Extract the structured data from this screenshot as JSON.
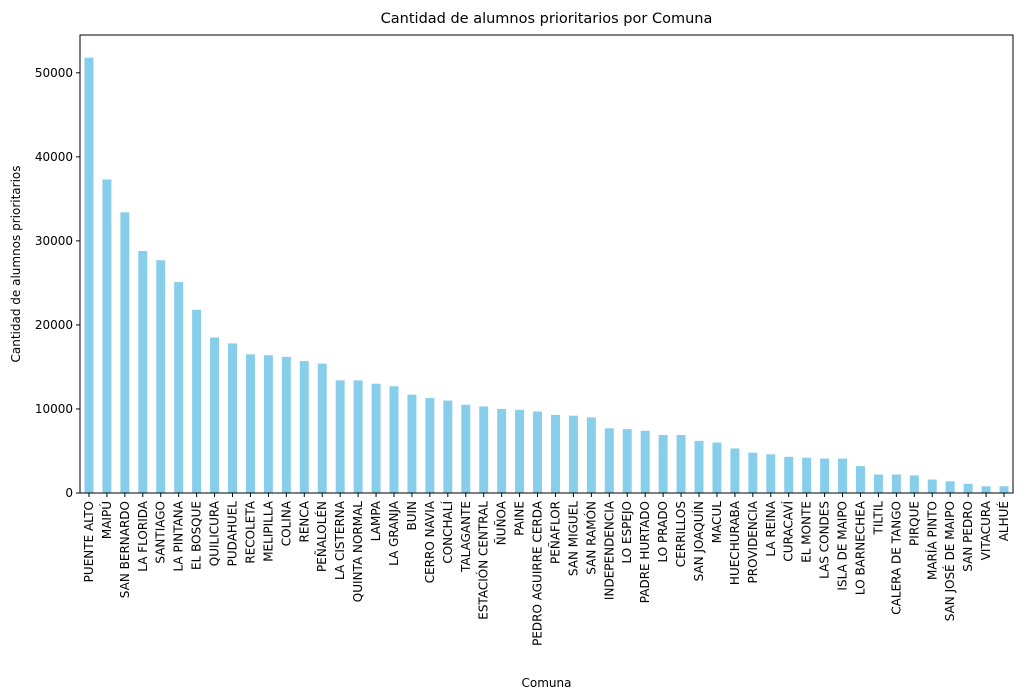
{
  "chart_data": {
    "type": "bar",
    "title": "Cantidad de alumnos prioritarios por Comuna",
    "xlabel": "Comuna",
    "ylabel": "Cantidad de alumnos prioritarios",
    "ylim": [
      0,
      54500
    ],
    "yticks": [
      0,
      10000,
      20000,
      30000,
      40000,
      50000
    ],
    "grid": false,
    "legend": "none",
    "bar_color": "#87CEEB",
    "categories": [
      "PUENTE ALTO",
      "MAIPÚ",
      "SAN BERNARDO",
      "LA FLORIDA",
      "SANTIAGO",
      "LA PINTANA",
      "EL BOSQUE",
      "QUILICURA",
      "PUDAHUEL",
      "RECOLETA",
      "MELIPILLA",
      "COLINA",
      "RENCA",
      "PEÑALOLÉN",
      "LA CISTERNA",
      "QUINTA NORMAL",
      "LAMPA",
      "LA GRANJA",
      "BUIN",
      "CERRO NAVIA",
      "CONCHALÍ",
      "TALAGANTE",
      "ESTACIÓN CENTRAL",
      "ÑUÑOA",
      "PAINE",
      "PEDRO AGUIRRE CERDA",
      "PEÑAFLOR",
      "SAN MIGUEL",
      "SAN RAMÓN",
      "INDEPENDENCIA",
      "LO ESPEJO",
      "PADRE HURTADO",
      "LO PRADO",
      "CERRILLOS",
      "SAN JOAQUÍN",
      "MACUL",
      "HUECHURABA",
      "PROVIDENCIA",
      "LA REINA",
      "CURACAVÍ",
      "EL MONTE",
      "LAS CONDES",
      "ISLA DE MAIPO",
      "LO BARNECHEA",
      "TILTIL",
      "CALERA DE TANGO",
      "PIRQUE",
      "MARÍA PINTO",
      "SAN JOSÉ DE MAIPO",
      "SAN PEDRO",
      "VITACURA",
      "ALHUÉ"
    ],
    "values": [
      51800,
      37300,
      33400,
      28800,
      27700,
      25100,
      21800,
      18500,
      17800,
      16500,
      16400,
      16200,
      15700,
      15400,
      13400,
      13400,
      13000,
      12700,
      11700,
      11300,
      11000,
      10500,
      10300,
      10000,
      9900,
      9700,
      9300,
      9200,
      9000,
      7700,
      7600,
      7400,
      6900,
      6900,
      6200,
      6000,
      5300,
      4800,
      4600,
      4300,
      4200,
      4100,
      4100,
      3200,
      2200,
      2200,
      2100,
      1600,
      1400,
      1100,
      800,
      800
    ]
  }
}
